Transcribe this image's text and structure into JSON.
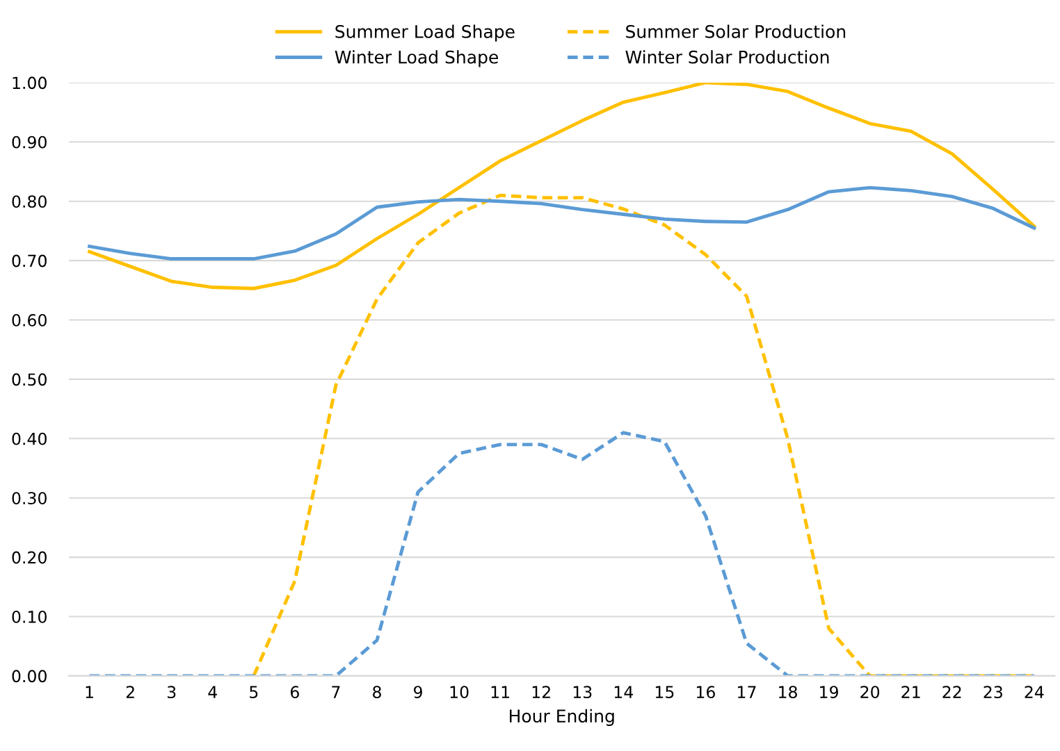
{
  "chart_data": {
    "type": "line",
    "xlabel": "Hour Ending",
    "categories": [
      "1",
      "2",
      "3",
      "4",
      "5",
      "6",
      "7",
      "8",
      "9",
      "10",
      "11",
      "12",
      "13",
      "14",
      "15",
      "16",
      "17",
      "18",
      "19",
      "20",
      "21",
      "22",
      "23",
      "24"
    ],
    "series": [
      {
        "name": "Summer Load Shape",
        "color": "#ffc000",
        "line_style": "solid",
        "values": [
          0.715,
          0.69,
          0.665,
          0.655,
          0.653,
          0.667,
          0.692,
          0.737,
          0.778,
          0.823,
          0.868,
          0.902,
          0.936,
          0.967,
          0.983,
          1.0,
          0.997,
          0.985,
          0.957,
          0.931,
          0.918,
          0.88,
          0.82,
          0.758
        ]
      },
      {
        "name": "Summer Solar Production",
        "color": "#ffc000",
        "line_style": "dashed",
        "values": [
          null,
          null,
          null,
          null,
          0,
          0.16,
          0.49,
          0.635,
          0.73,
          0.78,
          0.81,
          0.806,
          0.806,
          0.787,
          0.76,
          0.71,
          0.64,
          0.4,
          0.08,
          0,
          0,
          0,
          0,
          0
        ]
      },
      {
        "name": "Winter Load Shape",
        "color": "#5b9bd5",
        "line_style": "solid",
        "values": [
          0.724,
          0.712,
          0.703,
          0.703,
          0.703,
          0.716,
          0.745,
          0.79,
          0.799,
          0.803,
          0.8,
          0.796,
          0.786,
          0.778,
          0.77,
          0.766,
          0.765,
          0.786,
          0.816,
          0.823,
          0.818,
          0.808,
          0.788,
          0.755
        ]
      },
      {
        "name": "Winter Solar Production",
        "color": "#5b9bd5",
        "line_style": "dashed",
        "values": [
          0,
          0,
          0,
          0,
          0,
          0,
          0,
          0.06,
          0.31,
          0.375,
          0.39,
          0.39,
          0.365,
          0.41,
          0.395,
          0.27,
          0.055,
          0,
          0,
          0,
          0,
          0,
          0,
          0
        ]
      }
    ],
    "ylim": [
      0,
      1.0
    ],
    "yticks": [
      {
        "value": 0,
        "label": "0.00"
      },
      {
        "value": 0.1,
        "label": "0.10"
      },
      {
        "value": 0.2,
        "label": "0.20"
      },
      {
        "value": 0.3,
        "label": "0.30"
      },
      {
        "value": 0.4,
        "label": "0.40"
      },
      {
        "value": 0.5,
        "label": "0.50"
      },
      {
        "value": 0.6,
        "label": "0.60"
      },
      {
        "value": 0.7,
        "label": "0.70"
      },
      {
        "value": 0.8,
        "label": "0.80"
      },
      {
        "value": 0.9,
        "label": "0.90"
      },
      {
        "value": 1.0,
        "label": "1.00"
      }
    ],
    "grid": "y",
    "legend": "top",
    "marker": "none"
  }
}
